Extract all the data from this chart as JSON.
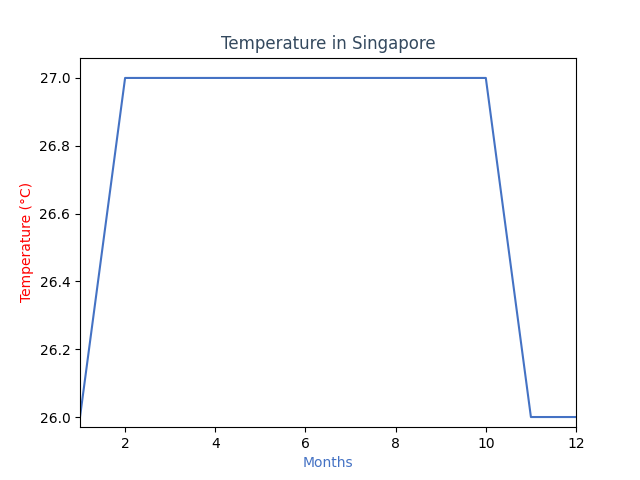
{
  "months": [
    1,
    2,
    10,
    11,
    12
  ],
  "temperatures": [
    26.0,
    27.0,
    27.0,
    26.0,
    26.0
  ],
  "title": "Temperature in Singapore",
  "xlabel": "Months",
  "ylabel": "Temperature (°C)",
  "title_color": "#34495e",
  "xlabel_color": "#4472c4",
  "ylabel_color": "red",
  "line_color": "#4472c4",
  "xlim": [
    1,
    12
  ],
  "ylim": [
    25.97,
    27.06
  ],
  "xticks": [
    2,
    4,
    6,
    8,
    10,
    12
  ],
  "yticks": [
    26.0,
    26.2,
    26.4,
    26.6,
    26.8,
    27.0
  ],
  "figsize": [
    6.4,
    4.8
  ],
  "dpi": 100
}
